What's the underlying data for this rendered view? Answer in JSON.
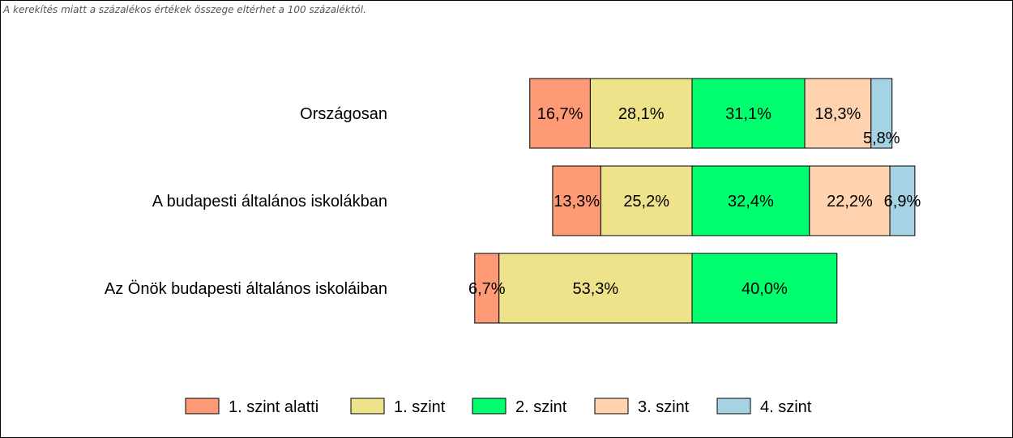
{
  "note": "A kerekítés miatt a  százalékos értékek összege eltérhet a 100 százaléktól.",
  "chart_data": {
    "type": "bar",
    "orientation": "horizontal",
    "stacked": "diverging",
    "categories": [
      "Országosan",
      "A budapesti általános iskolákban",
      "Az Önök budapesti általános iskoláiban"
    ],
    "series": [
      {
        "name": "1. szint alatti",
        "color": "#FF9A76",
        "values": [
          16.7,
          13.3,
          6.7
        ],
        "labels": [
          "16,7%",
          "13,3%",
          "6,7%"
        ]
      },
      {
        "name": "1. szint",
        "color": "#EEE38A",
        "values": [
          28.1,
          25.2,
          53.3
        ],
        "labels": [
          "28,1%",
          "25,2%",
          "53,3%"
        ]
      },
      {
        "name": "2. szint",
        "color": "#00FF6E",
        "values": [
          31.1,
          32.4,
          40.0
        ],
        "labels": [
          "31,1%",
          "32,4%",
          "40,0%"
        ]
      },
      {
        "name": "3. szint",
        "color": "#FFD3B0",
        "values": [
          18.3,
          22.2,
          0
        ],
        "labels": [
          "18,3%",
          "22,2%",
          ""
        ]
      },
      {
        "name": "4. szint",
        "color": "#A6D3E3",
        "values": [
          5.8,
          6.9,
          0
        ],
        "labels": [
          "5,8%",
          "6,9%",
          ""
        ]
      }
    ],
    "legend_position": "bottom",
    "grid": false
  }
}
